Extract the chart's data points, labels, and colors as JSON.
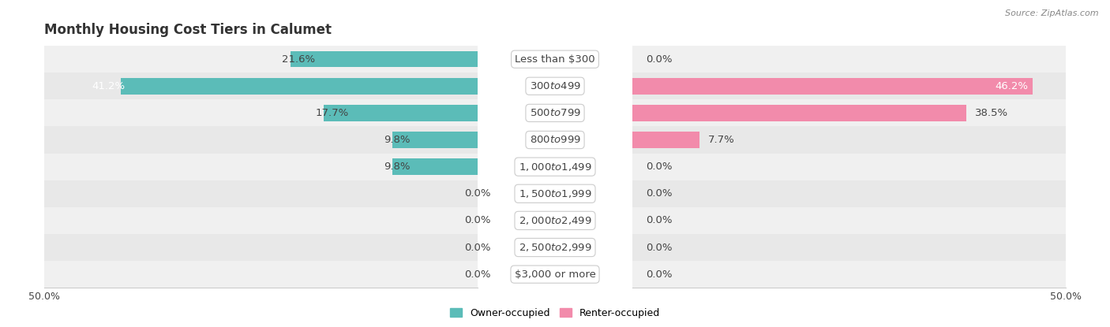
{
  "title": "Monthly Housing Cost Tiers in Calumet",
  "source": "Source: ZipAtlas.com",
  "categories": [
    "Less than $300",
    "$300 to $499",
    "$500 to $799",
    "$800 to $999",
    "$1,000 to $1,499",
    "$1,500 to $1,999",
    "$2,000 to $2,499",
    "$2,500 to $2,999",
    "$3,000 or more"
  ],
  "owner_values": [
    21.6,
    41.2,
    17.7,
    9.8,
    9.8,
    0.0,
    0.0,
    0.0,
    0.0
  ],
  "renter_values": [
    0.0,
    46.2,
    38.5,
    7.7,
    0.0,
    0.0,
    0.0,
    0.0,
    0.0
  ],
  "owner_color": "#5bbcb8",
  "renter_color": "#f28bab",
  "row_bg_even": "#f0f0f0",
  "row_bg_odd": "#e8e8e8",
  "max_value": 50.0,
  "bar_height": 0.6,
  "label_fontsize": 9.5,
  "title_fontsize": 12,
  "source_fontsize": 8,
  "legend_owner": "Owner-occupied",
  "legend_renter": "Renter-occupied",
  "background_color": "#ffffff",
  "text_color_dark": "#444444",
  "text_color_white": "#ffffff"
}
